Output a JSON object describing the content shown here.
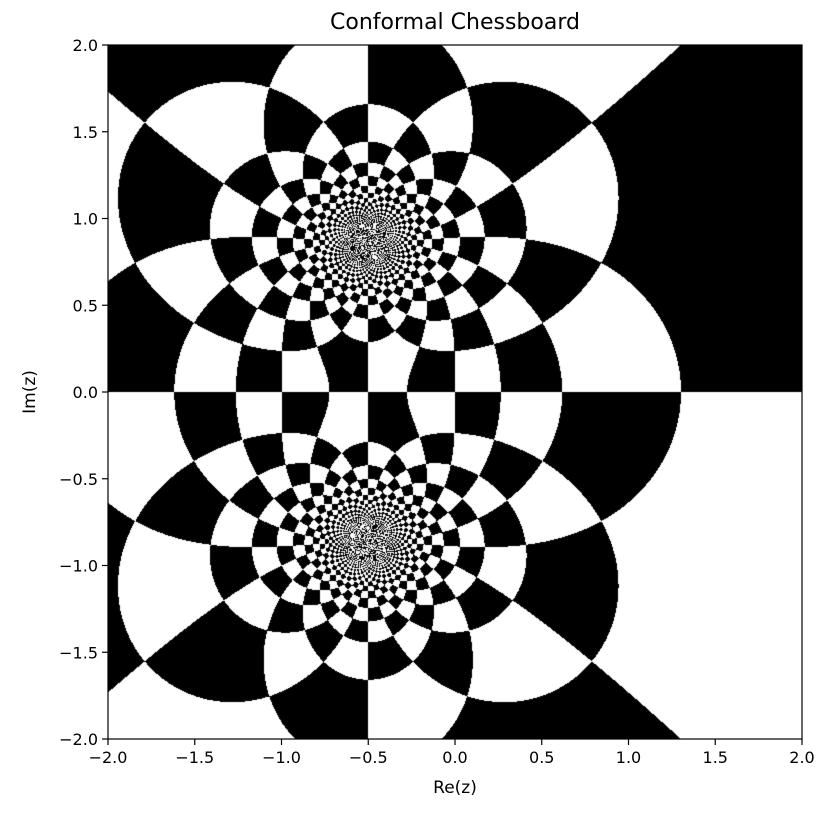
{
  "chart_data": {
    "type": "heatmap",
    "title": "Conformal Chessboard",
    "xlabel": "Re(z)",
    "ylabel": "Im(z)",
    "xlim": [
      -2.0,
      2.0
    ],
    "ylim": [
      -2.0,
      2.0
    ],
    "x_ticks": [
      "−2.0",
      "−1.5",
      "−1.0",
      "−0.5",
      "0.0",
      "0.5",
      "1.0",
      "1.5",
      "2.0"
    ],
    "y_ticks": [
      "2.0",
      "1.5",
      "1.0",
      "0.5",
      "0.0",
      "−0.5",
      "−1.0",
      "−1.5",
      "−2.0"
    ],
    "colormap": [
      "#000000",
      "#ffffff"
    ],
    "grid": false,
    "legend": "none"
  }
}
